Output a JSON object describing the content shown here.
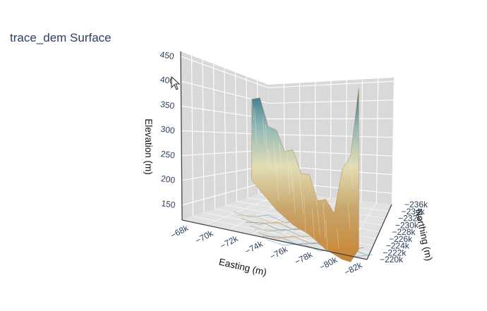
{
  "chart": {
    "title": "trace_dem Surface"
  },
  "chart_data": {
    "type": "surface",
    "title": "trace_dem Surface",
    "xlabel": "Easting (m)",
    "ylabel": "Northing (m)",
    "zlabel": "Elevation (m)",
    "x_ticks": [
      "−68k",
      "−70k",
      "−72k",
      "−74k",
      "−76k",
      "−78k",
      "−80k",
      "−82k"
    ],
    "y_ticks": [
      "−220k",
      "−222k",
      "−224k",
      "−226k",
      "−228k",
      "−230k",
      "−232k",
      "−234k",
      "−236k"
    ],
    "z_ticks": [
      "150",
      "200",
      "250",
      "300",
      "350",
      "400",
      "450"
    ],
    "xlim": [
      -68000,
      -83000
    ],
    "ylim": [
      -220000,
      -236000
    ],
    "zlim": [
      120,
      460
    ],
    "colorscale": [
      "#d08f3a",
      "#c7aa72",
      "#e0dcb4",
      "#9fc0bd",
      "#4d8e98",
      "#2c6b80"
    ],
    "grid": true,
    "colors": {
      "wall": "#d9d9d9",
      "gridline": "#ffffff",
      "title": "#2a3f5f"
    },
    "surface_profile": {
      "x_data": [
        -69000,
        -70000,
        -71000,
        -72000,
        -73000,
        -74000,
        -75000,
        -76000,
        -77000,
        -78000,
        -79000,
        -80000,
        -81000,
        -82000
      ],
      "ridge_top": [
        415,
        395,
        360,
        330,
        310,
        290,
        265,
        240,
        210,
        190,
        185,
        250,
        300,
        415
      ],
      "ridge_bottom": [
        300,
        280,
        260,
        240,
        225,
        210,
        200,
        190,
        175,
        160,
        150,
        140,
        135,
        160
      ]
    }
  }
}
